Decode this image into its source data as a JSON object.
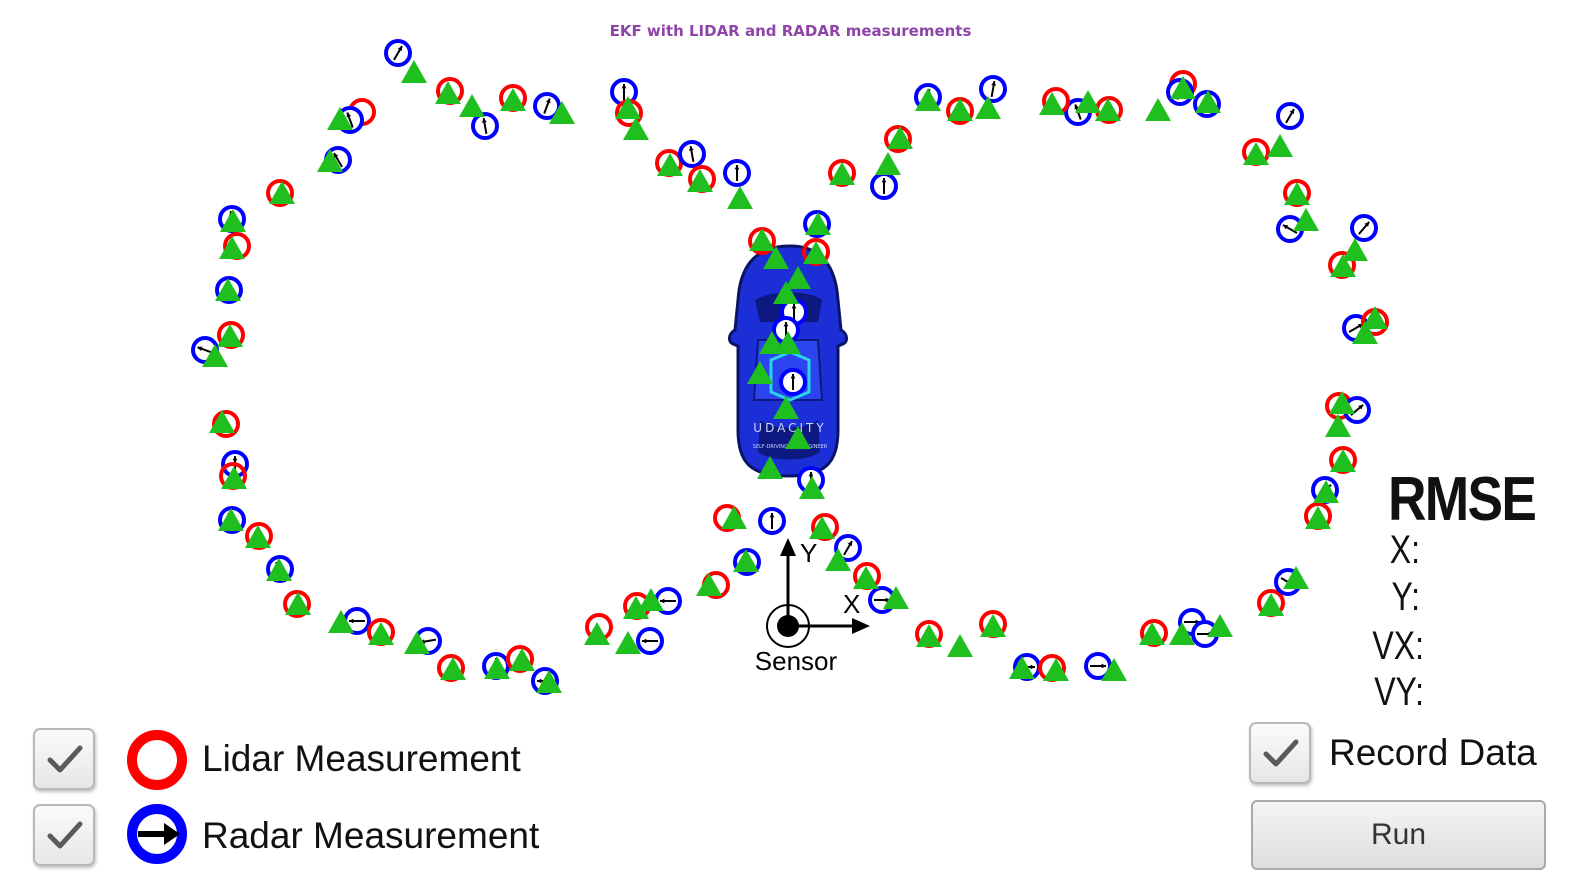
{
  "title": "EKF with LIDAR and RADAR measurements",
  "scene": {
    "car_brand": "UDACITY",
    "car_tagline": "SELF-DRIVING CAR ENGINEER",
    "sensor_label": "Sensor",
    "axis_x_label": "X",
    "axis_y_label": "Y"
  },
  "legend": {
    "lidar": {
      "label": "Lidar Measurement",
      "checked": true,
      "color": "#ff0000"
    },
    "radar": {
      "label": "Radar Measurement",
      "checked": true,
      "color": "#0000ff"
    }
  },
  "rmse": {
    "title": "RMSE",
    "rows": [
      {
        "label": "X:",
        "value": ""
      },
      {
        "label": "Y:",
        "value": ""
      },
      {
        "label": "VX:",
        "value": ""
      },
      {
        "label": "VY:",
        "value": ""
      }
    ]
  },
  "record": {
    "label": "Record Data",
    "checked": true
  },
  "run_button": {
    "label": "Run"
  },
  "colors": {
    "estimate": "#1fbf1f",
    "lidar": "#ff0000",
    "radar": "#0000ff",
    "title": "#8e44a8",
    "car": "#1c2fd6"
  },
  "icons": {
    "checkbox": "checkmark-icon",
    "lidar": "red-ring-icon",
    "radar": "blue-ring-arrow-icon",
    "estimate": "green-triangle-icon",
    "sensor": "sensor-target-icon"
  }
}
